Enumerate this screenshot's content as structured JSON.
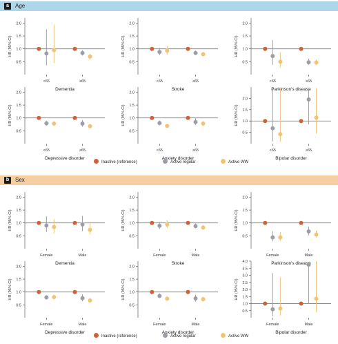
{
  "colors": {
    "inactive": "#c8643c",
    "active_regular": "#9aa0aa",
    "active_ww": "#eec47a",
    "section_a_bg": "#aed6ea",
    "section_b_bg": "#f5cfa1"
  },
  "panels": {
    "a": {
      "letter": "a",
      "title": "Age"
    },
    "b": {
      "letter": "b",
      "title": "Sex"
    }
  },
  "legend": {
    "inactive": "Inactive (reference)",
    "active_regular": "Active regular",
    "active_ww": "Active WW"
  },
  "chart_data": [
    {
      "type": "scatter",
      "panel": "a",
      "title": "Dementia",
      "ylabel": "HR (95% CI)",
      "categories": [
        "<65",
        "≥65"
      ],
      "ylim": [
        0,
        2.2
      ],
      "yticks": [
        0.5,
        1.0,
        1.5,
        2.0
      ],
      "series": [
        {
          "name": "Inactive (reference)",
          "values": [
            1.0,
            1.0
          ],
          "lower": [
            1.0,
            1.0
          ],
          "upper": [
            1.0,
            1.0
          ]
        },
        {
          "name": "Active regular",
          "values": [
            0.82,
            0.84
          ],
          "lower": [
            0.36,
            0.74
          ],
          "upper": [
            1.76,
            0.95
          ]
        },
        {
          "name": "Active WW",
          "values": [
            0.95,
            0.7
          ],
          "lower": [
            0.45,
            0.58
          ],
          "upper": [
            1.95,
            0.82
          ]
        }
      ]
    },
    {
      "type": "scatter",
      "panel": "a",
      "title": "Stroke",
      "ylabel": "HR (95% CI)",
      "categories": [
        "<65",
        "≥65"
      ],
      "ylim": [
        0,
        2.2
      ],
      "yticks": [
        0.5,
        1.0,
        1.5,
        2.0
      ],
      "series": [
        {
          "name": "Inactive (reference)",
          "values": [
            1.0,
            1.0
          ],
          "lower": [
            1.0,
            1.0
          ],
          "upper": [
            1.0,
            1.0
          ]
        },
        {
          "name": "Active regular",
          "values": [
            0.88,
            0.84
          ],
          "lower": [
            0.75,
            0.76
          ],
          "upper": [
            1.04,
            0.93
          ]
        },
        {
          "name": "Active WW",
          "values": [
            0.93,
            0.79
          ],
          "lower": [
            0.78,
            0.71
          ],
          "upper": [
            1.1,
            0.88
          ]
        }
      ]
    },
    {
      "type": "scatter",
      "panel": "a",
      "title": "Parkinson's disease",
      "ylabel": "HR (95% CI)",
      "categories": [
        "<65",
        "≥65"
      ],
      "ylim": [
        0,
        2.2
      ],
      "yticks": [
        0.5,
        1.0,
        1.5,
        2.0
      ],
      "series": [
        {
          "name": "Inactive (reference)",
          "values": [
            1.0,
            1.0
          ],
          "lower": [
            1.0,
            1.0
          ],
          "upper": [
            1.0,
            1.0
          ]
        },
        {
          "name": "Active regular",
          "values": [
            0.72,
            0.48
          ],
          "lower": [
            0.38,
            0.38
          ],
          "upper": [
            1.34,
            0.62
          ]
        },
        {
          "name": "Active WW",
          "values": [
            0.5,
            0.47
          ],
          "lower": [
            0.28,
            0.38
          ],
          "upper": [
            0.87,
            0.58
          ]
        }
      ]
    },
    {
      "type": "scatter",
      "panel": "a",
      "title": "Depressive disorder",
      "ylabel": "HR (95% CI)",
      "categories": [
        "<65",
        "≥65"
      ],
      "ylim": [
        0,
        2.2
      ],
      "yticks": [
        0.5,
        1.0,
        1.5,
        2.0
      ],
      "series": [
        {
          "name": "Inactive (reference)",
          "values": [
            1.0,
            1.0
          ],
          "lower": [
            1.0,
            1.0
          ],
          "upper": [
            1.0,
            1.0
          ]
        },
        {
          "name": "Active regular",
          "values": [
            0.79,
            0.78
          ],
          "lower": [
            0.7,
            0.66
          ],
          "upper": [
            0.89,
            0.92
          ]
        },
        {
          "name": "Active WW",
          "values": [
            0.78,
            0.68
          ],
          "lower": [
            0.7,
            0.6
          ],
          "upper": [
            0.87,
            0.77
          ]
        }
      ]
    },
    {
      "type": "scatter",
      "panel": "a",
      "title": "Anxiety disorder",
      "ylabel": "HR (95% CI)",
      "categories": [
        "<65",
        "≥65"
      ],
      "ylim": [
        0,
        2.2
      ],
      "yticks": [
        0.5,
        1.0,
        1.5,
        2.0
      ],
      "series": [
        {
          "name": "Inactive (reference)",
          "values": [
            1.0,
            1.0
          ],
          "lower": [
            1.0,
            1.0
          ],
          "upper": [
            1.0,
            1.0
          ]
        },
        {
          "name": "Active regular",
          "values": [
            0.8,
            0.84
          ],
          "lower": [
            0.71,
            0.72
          ],
          "upper": [
            0.9,
            0.98
          ]
        },
        {
          "name": "Active WW",
          "values": [
            0.69,
            0.78
          ],
          "lower": [
            0.62,
            0.69
          ],
          "upper": [
            0.77,
            0.88
          ]
        }
      ]
    },
    {
      "type": "scatter",
      "panel": "a",
      "title": "Bipolar disorder",
      "ylabel": "HR (95% CI)",
      "categories": [
        "<65",
        "≥65"
      ],
      "ylim": [
        0,
        2.5
      ],
      "yticks": [
        0.5,
        1.0,
        1.5,
        2.0
      ],
      "series": [
        {
          "name": "Inactive (reference)",
          "values": [
            1.0,
            1.0
          ],
          "lower": [
            1.0,
            1.0
          ],
          "upper": [
            1.0,
            1.0
          ]
        },
        {
          "name": "Active regular",
          "values": [
            0.68,
            1.95
          ],
          "lower": [
            0.1,
            0.85
          ],
          "upper": [
            2.45,
            2.45
          ]
        },
        {
          "name": "Active WW",
          "values": [
            0.42,
            1.15
          ],
          "lower": [
            0.08,
            0.45
          ],
          "upper": [
            2.45,
            2.45
          ]
        }
      ]
    },
    {
      "type": "scatter",
      "panel": "b",
      "title": "Dementia",
      "ylabel": "HR (95% CI)",
      "categories": [
        "Female",
        "Male"
      ],
      "ylim": [
        0,
        2.2
      ],
      "yticks": [
        0.5,
        1.0,
        1.5,
        2.0
      ],
      "series": [
        {
          "name": "Inactive (reference)",
          "values": [
            1.0,
            1.0
          ],
          "lower": [
            1.0,
            1.0
          ],
          "upper": [
            1.0,
            1.0
          ]
        },
        {
          "name": "Active regular",
          "values": [
            0.9,
            0.94
          ],
          "lower": [
            0.65,
            0.68
          ],
          "upper": [
            1.26,
            1.27
          ]
        },
        {
          "name": "Active WW",
          "values": [
            0.84,
            0.73
          ],
          "lower": [
            0.6,
            0.55
          ],
          "upper": [
            1.15,
            0.98
          ]
        }
      ]
    },
    {
      "type": "scatter",
      "panel": "b",
      "title": "Stroke",
      "ylabel": "HR (95% CI)",
      "categories": [
        "Female",
        "Male"
      ],
      "ylim": [
        0,
        2.2
      ],
      "yticks": [
        0.5,
        1.0,
        1.5,
        2.0
      ],
      "series": [
        {
          "name": "Inactive (reference)",
          "values": [
            1.0,
            1.0
          ],
          "lower": [
            1.0,
            1.0
          ],
          "upper": [
            1.0,
            1.0
          ]
        },
        {
          "name": "Active regular",
          "values": [
            0.89,
            0.88
          ],
          "lower": [
            0.76,
            0.79
          ],
          "upper": [
            1.04,
            0.98
          ]
        },
        {
          "name": "Active WW",
          "values": [
            0.94,
            0.82
          ],
          "lower": [
            0.8,
            0.74
          ],
          "upper": [
            1.1,
            0.91
          ]
        }
      ]
    },
    {
      "type": "scatter",
      "panel": "b",
      "title": "Parkinson's disease",
      "ylabel": "HR (95% CI)",
      "categories": [
        "Female",
        "Male"
      ],
      "ylim": [
        0,
        2.2
      ],
      "yticks": [
        0.5,
        1.0,
        1.5,
        2.0
      ],
      "series": [
        {
          "name": "Inactive (reference)",
          "values": [
            1.0,
            1.0
          ],
          "lower": [
            1.0,
            1.0
          ],
          "upper": [
            1.0,
            1.0
          ]
        },
        {
          "name": "Active regular",
          "values": [
            0.44,
            0.67
          ],
          "lower": [
            0.28,
            0.52
          ],
          "upper": [
            0.68,
            0.86
          ]
        },
        {
          "name": "Active WW",
          "values": [
            0.44,
            0.55
          ],
          "lower": [
            0.3,
            0.44
          ],
          "upper": [
            0.65,
            0.7
          ]
        }
      ]
    },
    {
      "type": "scatter",
      "panel": "b",
      "title": "Depressive disorder",
      "ylabel": "HR (95% CI)",
      "categories": [
        "Female",
        "Male"
      ],
      "ylim": [
        0,
        2.2
      ],
      "yticks": [
        0.5,
        1.0,
        1.5,
        2.0
      ],
      "series": [
        {
          "name": "Inactive (reference)",
          "values": [
            1.0,
            1.0
          ],
          "lower": [
            1.0,
            1.0
          ],
          "upper": [
            1.0,
            1.0
          ]
        },
        {
          "name": "Active regular",
          "values": [
            0.79,
            0.76
          ],
          "lower": [
            0.71,
            0.64
          ],
          "upper": [
            0.88,
            0.91
          ]
        },
        {
          "name": "Active WW",
          "values": [
            0.8,
            0.67
          ],
          "lower": [
            0.72,
            0.59
          ],
          "upper": [
            0.89,
            0.76
          ]
        }
      ]
    },
    {
      "type": "scatter",
      "panel": "b",
      "title": "Anxiety disorder",
      "ylabel": "HR (95% CI)",
      "categories": [
        "Female",
        "Male"
      ],
      "ylim": [
        0,
        2.2
      ],
      "yticks": [
        0.5,
        1.0,
        1.5,
        2.0
      ],
      "series": [
        {
          "name": "Inactive (reference)",
          "values": [
            1.0,
            1.0
          ],
          "lower": [
            1.0,
            1.0
          ],
          "upper": [
            1.0,
            1.0
          ]
        },
        {
          "name": "Active regular",
          "values": [
            0.85,
            0.75
          ],
          "lower": [
            0.76,
            0.63
          ],
          "upper": [
            0.95,
            0.89
          ]
        },
        {
          "name": "Active WW",
          "values": [
            0.74,
            0.72
          ],
          "lower": [
            0.67,
            0.63
          ],
          "upper": [
            0.82,
            0.82
          ]
        }
      ]
    },
    {
      "type": "scatter",
      "panel": "b",
      "title": "Bipolar disorder",
      "ylabel": "HR (95% CI)",
      "categories": [
        "Female",
        "Male"
      ],
      "ylim": [
        0,
        4.0
      ],
      "yticks": [
        0.5,
        1.0,
        1.5,
        2.0,
        2.5,
        3.0,
        3.5,
        4.0
      ],
      "series": [
        {
          "name": "Inactive (reference)",
          "values": [
            1.0,
            1.0
          ],
          "lower": [
            1.0,
            1.0
          ],
          "upper": [
            1.0,
            1.0
          ]
        },
        {
          "name": "Active regular",
          "values": [
            0.6,
            3.75
          ],
          "lower": [
            0.1,
            1.0
          ],
          "upper": [
            3.15,
            3.95
          ]
        },
        {
          "name": "Active WW",
          "values": [
            0.65,
            1.35
          ],
          "lower": [
            0.15,
            0.4
          ],
          "upper": [
            2.85,
            4.0
          ]
        }
      ]
    }
  ]
}
